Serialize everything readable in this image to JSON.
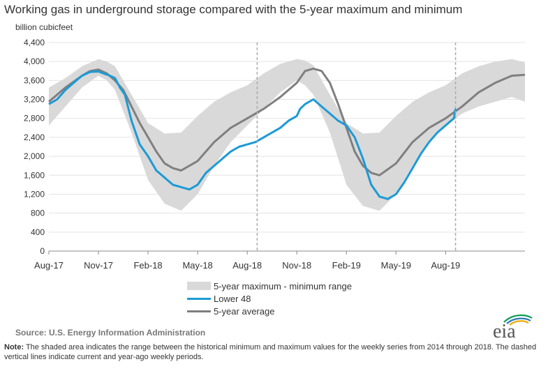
{
  "title": "Working gas in underground  storage compared with the 5-year maximum and minimum",
  "unit_label": "billion cubicfeet",
  "legend": {
    "range": "5-year maximum - minimum range",
    "lower48": "Lower 48",
    "average": "5-year average"
  },
  "source": "Source:  U.S. Energy Information Administration",
  "note_label": "Note:",
  "note_text": " The shaded area indicates the range between the historical minimum and maximum values for the weekly series from 2014 through 2018. The dashed vertical lines indicate current and year-ago weekly periods.",
  "logo_text": "eia",
  "colors": {
    "range": "#d9d9d9",
    "lower48": "#1c9ad6",
    "average": "#7f7f7f",
    "dashed": "#aaaaaa",
    "logo_swoosh": [
      "#0f9d58",
      "#2a7ab8",
      "#f2a900"
    ]
  },
  "chart_data": {
    "type": "area",
    "ylabel": "billion cubicfeet",
    "ylim": [
      0,
      4400
    ],
    "yticks": [
      "0",
      "400",
      "800",
      "1,200",
      "1,600",
      "2,000",
      "2,400",
      "2,800",
      "3,200",
      "3,600",
      "4,000",
      "4,400"
    ],
    "xticks": [
      "Aug-17",
      "Nov-17",
      "Feb-18",
      "May-18",
      "Aug-18",
      "Nov-18",
      "Feb-19",
      "May-19",
      "Aug-19"
    ],
    "xtick_months": [
      0,
      3,
      6,
      9,
      12,
      15,
      18,
      21,
      24
    ],
    "x_min_month": 0,
    "x_max_month": 28.8,
    "dashed_lines_month": [
      12.6,
      24.6
    ],
    "series": [
      {
        "name": "5-year maximum - minimum range",
        "kind": "band",
        "x": [
          0,
          1,
          2,
          3,
          3.5,
          4,
          5,
          6,
          7,
          8,
          9,
          10,
          11,
          12,
          13,
          14,
          15,
          15.5,
          16,
          17,
          18,
          19,
          20,
          21,
          22,
          23,
          24,
          25,
          26,
          27,
          28,
          28.8
        ],
        "high": [
          3450,
          3650,
          3900,
          4050,
          4000,
          3900,
          3300,
          2700,
          2480,
          2500,
          2850,
          3150,
          3350,
          3500,
          3750,
          3950,
          4050,
          4020,
          3920,
          3300,
          2700,
          2480,
          2500,
          2850,
          3150,
          3350,
          3500,
          3750,
          3900,
          4000,
          4050,
          3980
        ],
        "low": [
          2650,
          3050,
          3450,
          3700,
          3600,
          3400,
          2500,
          1500,
          1000,
          850,
          1200,
          1800,
          2300,
          2650,
          3000,
          3350,
          3600,
          3500,
          3300,
          2500,
          1400,
          950,
          850,
          1200,
          1800,
          2300,
          2650,
          2900,
          3050,
          3150,
          3250,
          3150
        ]
      },
      {
        "name": "Lower 48",
        "kind": "line",
        "x": [
          0,
          0.5,
          1,
          1.5,
          2,
          2.5,
          3,
          3.3,
          3.7,
          4,
          4.3,
          4.6,
          5,
          5.5,
          6,
          6.5,
          7,
          7.5,
          8,
          8.5,
          9,
          9.5,
          10,
          10.5,
          11,
          11.5,
          12,
          12.5,
          13,
          13.5,
          14,
          14.5,
          15,
          15.2,
          15.5,
          16,
          16.5,
          17,
          17.5,
          18,
          18.5,
          19,
          19.5,
          20,
          20.5,
          21,
          21.5,
          22,
          22.5,
          23,
          23.5,
          24,
          24.5,
          24.6
        ],
        "values": [
          3100,
          3200,
          3400,
          3550,
          3700,
          3780,
          3790,
          3750,
          3700,
          3650,
          3450,
          3300,
          2750,
          2250,
          2000,
          1700,
          1550,
          1400,
          1350,
          1300,
          1400,
          1650,
          1800,
          1950,
          2100,
          2200,
          2250,
          2300,
          2400,
          2500,
          2600,
          2750,
          2850,
          3000,
          3100,
          3200,
          3050,
          2900,
          2750,
          2650,
          2400,
          1950,
          1400,
          1150,
          1100,
          1200,
          1450,
          1750,
          2050,
          2300,
          2500,
          2650,
          2800,
          3000
        ]
      },
      {
        "name": "5-year average",
        "kind": "line",
        "x": [
          0,
          1,
          2,
          2.5,
          3,
          3.5,
          4,
          4.5,
          5,
          5.5,
          6,
          6.5,
          7,
          7.5,
          8,
          9,
          10,
          11,
          12,
          13,
          14,
          15,
          15.5,
          16,
          16.5,
          17,
          17.5,
          18,
          18.5,
          19,
          19.5,
          20,
          21,
          22,
          23,
          24,
          25,
          26,
          27,
          28,
          28.8
        ],
        "values": [
          3150,
          3450,
          3700,
          3800,
          3830,
          3750,
          3600,
          3400,
          3050,
          2700,
          2400,
          2100,
          1850,
          1750,
          1700,
          1900,
          2300,
          2600,
          2800,
          3000,
          3250,
          3550,
          3800,
          3850,
          3800,
          3550,
          3100,
          2600,
          2100,
          1800,
          1650,
          1600,
          1850,
          2300,
          2600,
          2800,
          3050,
          3350,
          3550,
          3700,
          3720
        ]
      }
    ]
  }
}
